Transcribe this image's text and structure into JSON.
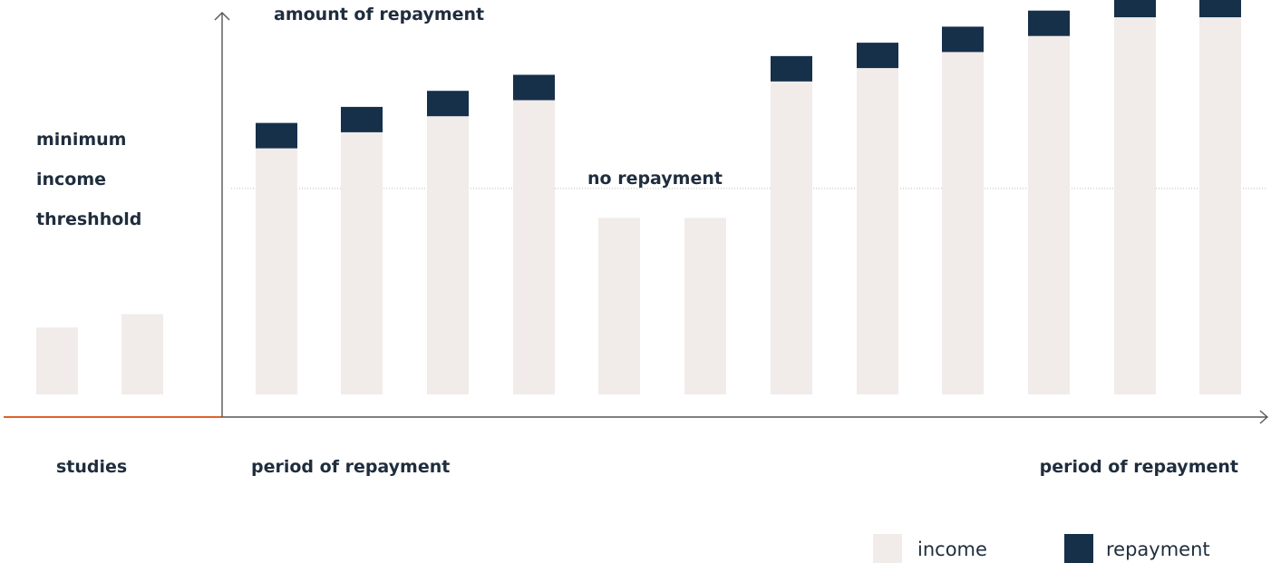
{
  "chart_data": {
    "type": "bar",
    "stacked": true,
    "title": "",
    "ylabel": "amount of repayment",
    "xlabel": "",
    "grid": false,
    "threshold": {
      "value": 77,
      "label_lines": [
        "minimum",
        "income",
        "threshhold"
      ]
    },
    "ylim": [
      0,
      150
    ],
    "series": [
      {
        "name": "income",
        "color": "#f1ece9",
        "values": [
          25,
          30,
          92,
          98,
          104,
          110,
          66,
          66,
          117,
          122,
          128,
          134,
          141,
          141
        ]
      },
      {
        "name": "repayment",
        "color": "#16304a",
        "values": [
          0,
          0,
          10,
          10,
          10,
          10,
          0,
          0,
          10,
          10,
          10,
          10,
          10,
          10
        ]
      }
    ],
    "period_labels": {
      "studies": "studies",
      "repayment_start": "period of repayment",
      "repayment_end": "period of repayment"
    },
    "annotations": {
      "no_repayment": "no repayment"
    },
    "legend": {
      "position": "bottom-right",
      "items": [
        {
          "label": "income",
          "color": "#f1ece9"
        },
        {
          "label": "repayment",
          "color": "#16304a"
        }
      ]
    },
    "colors": {
      "axis": "#555555",
      "studies_axis": "#e0622c",
      "threshold_line": "#bbbbbb",
      "text": "#1f2d3d"
    }
  }
}
